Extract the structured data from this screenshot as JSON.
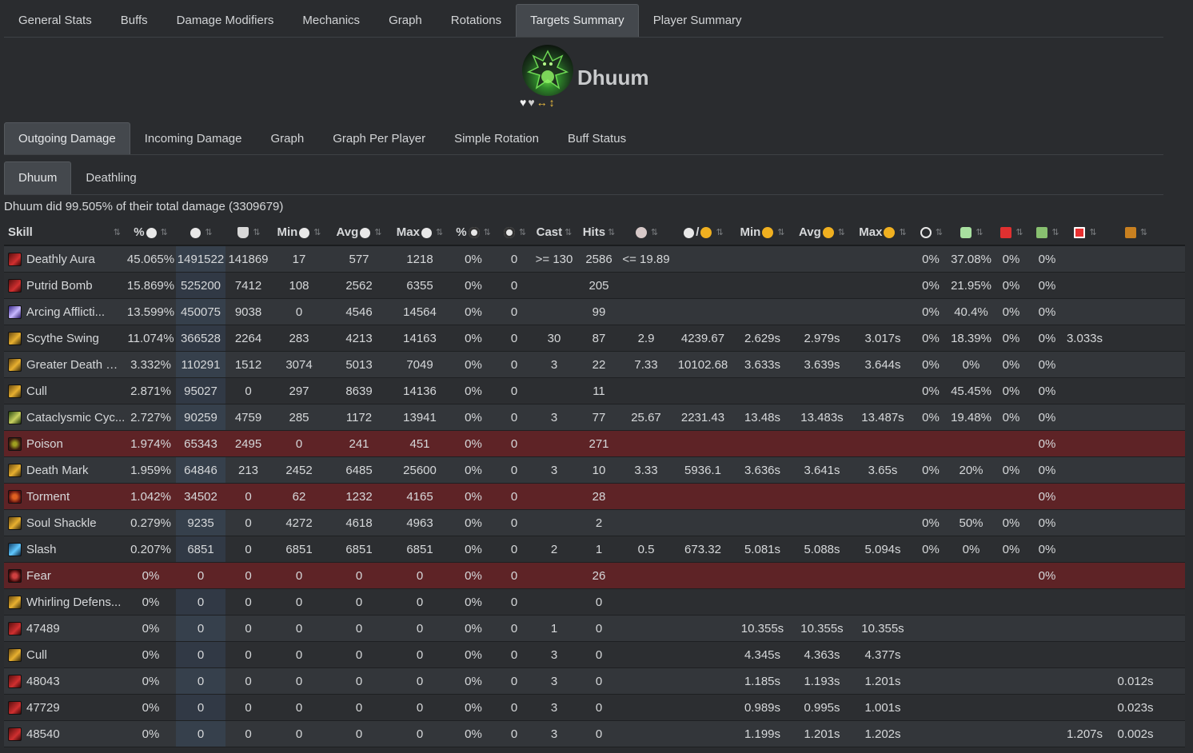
{
  "main_tabs": [
    "General Stats",
    "Buffs",
    "Damage Modifiers",
    "Mechanics",
    "Graph",
    "Rotations",
    "Targets Summary",
    "Player Summary"
  ],
  "main_active": "Targets Summary",
  "target": {
    "name": "Dhuum",
    "status_icons": [
      "♥",
      "♥",
      "↔",
      "↕"
    ]
  },
  "sub_tabs": [
    "Outgoing Damage",
    "Incoming Damage",
    "Graph",
    "Graph Per Player",
    "Simple Rotation",
    "Buff Status"
  ],
  "sub_active": "Outgoing Damage",
  "target_tabs": [
    "Dhuum",
    "Deathling"
  ],
  "target_active": "Dhuum",
  "summary": "Dhuum did 99.505% of their total damage (3309679)",
  "table": {
    "headers": [
      {
        "text": "Skill",
        "icon": null
      },
      {
        "text": "%",
        "icon": "damage-icon"
      },
      {
        "text": "",
        "icon": "damage-icon"
      },
      {
        "text": "",
        "icon": "barrier-icon"
      },
      {
        "text": "Min",
        "icon": "damage-icon"
      },
      {
        "text": "Avg",
        "icon": "damage-icon"
      },
      {
        "text": "Max",
        "icon": "damage-icon"
      },
      {
        "text": "%",
        "icon": "critical-icon"
      },
      {
        "text": "",
        "icon": "critical-icon"
      },
      {
        "text": "Cast",
        "icon": null
      },
      {
        "text": "Hits",
        "icon": null
      },
      {
        "text": "",
        "icon": "hits-per-cast-icon"
      },
      {
        "text": "/",
        "icon": "damage-per-time-icon"
      },
      {
        "text": "Min",
        "icon": "time-icon"
      },
      {
        "text": "Avg",
        "icon": "time-icon"
      },
      {
        "text": "Max",
        "icon": "time-icon"
      },
      {
        "text": "",
        "icon": "interrupt-icon"
      },
      {
        "text": "",
        "icon": "evade-icon"
      },
      {
        "text": "",
        "icon": "block-icon"
      },
      {
        "text": "",
        "icon": "invulnerable-icon"
      },
      {
        "text": "",
        "icon": "missed-icon"
      },
      {
        "text": "",
        "icon": "wasted-time-icon"
      }
    ],
    "rows": [
      {
        "skill": "Deathly Aura",
        "icon": "red",
        "highlight": false,
        "cells": [
          "45.065%",
          "1491522",
          "141869",
          "17",
          "577",
          "1218",
          "0%",
          "0",
          ">= 130",
          "2586",
          "<= 19.89",
          "",
          "",
          "",
          "",
          "0%",
          "37.08%",
          "0%",
          "0%",
          "",
          ""
        ]
      },
      {
        "skill": "Putrid Bomb",
        "icon": "red",
        "highlight": false,
        "cells": [
          "15.869%",
          "525200",
          "7412",
          "108",
          "2562",
          "6355",
          "0%",
          "0",
          "",
          "205",
          "",
          "",
          "",
          "",
          "",
          "0%",
          "21.95%",
          "0%",
          "0%",
          "",
          ""
        ]
      },
      {
        "skill": "Arcing Afflicti...",
        "icon": "purple",
        "highlight": false,
        "cells": [
          "13.599%",
          "450075",
          "9038",
          "0",
          "4546",
          "14564",
          "0%",
          "0",
          "",
          "99",
          "",
          "",
          "",
          "",
          "",
          "0%",
          "40.4%",
          "0%",
          "0%",
          "",
          ""
        ]
      },
      {
        "skill": "Scythe Swing",
        "icon": "gold",
        "highlight": false,
        "cells": [
          "11.074%",
          "366528",
          "2264",
          "283",
          "4213",
          "14163",
          "0%",
          "0",
          "30",
          "87",
          "2.9",
          "4239.67",
          "2.629s",
          "2.979s",
          "3.017s",
          "0%",
          "18.39%",
          "0%",
          "0%",
          "3.033s",
          ""
        ]
      },
      {
        "skill": "Greater Death M...",
        "icon": "gold",
        "highlight": false,
        "cells": [
          "3.332%",
          "110291",
          "1512",
          "3074",
          "5013",
          "7049",
          "0%",
          "0",
          "3",
          "22",
          "7.33",
          "10102.68",
          "3.633s",
          "3.639s",
          "3.644s",
          "0%",
          "0%",
          "0%",
          "0%",
          "",
          ""
        ]
      },
      {
        "skill": "Cull",
        "icon": "gold",
        "highlight": false,
        "cells": [
          "2.871%",
          "95027",
          "0",
          "297",
          "8639",
          "14136",
          "0%",
          "0",
          "",
          "11",
          "",
          "",
          "",
          "",
          "",
          "0%",
          "45.45%",
          "0%",
          "0%",
          "",
          ""
        ]
      },
      {
        "skill": "Cataclysmic Cyc...",
        "icon": "green",
        "highlight": false,
        "cells": [
          "2.727%",
          "90259",
          "4759",
          "285",
          "1172",
          "13941",
          "0%",
          "0",
          "3",
          "77",
          "25.67",
          "2231.43",
          "13.48s",
          "13.483s",
          "13.487s",
          "0%",
          "19.48%",
          "0%",
          "0%",
          "",
          ""
        ]
      },
      {
        "skill": "Poison",
        "icon": "poison",
        "highlight": true,
        "cells": [
          "1.974%",
          "65343",
          "2495",
          "0",
          "241",
          "451",
          "0%",
          "0",
          "",
          "271",
          "",
          "",
          "",
          "",
          "",
          "",
          "",
          "",
          "0%",
          "",
          ""
        ]
      },
      {
        "skill": "Death Mark",
        "icon": "gold",
        "highlight": false,
        "cells": [
          "1.959%",
          "64846",
          "213",
          "2452",
          "6485",
          "25600",
          "0%",
          "0",
          "3",
          "10",
          "3.33",
          "5936.1",
          "3.636s",
          "3.641s",
          "3.65s",
          "0%",
          "20%",
          "0%",
          "0%",
          "",
          ""
        ]
      },
      {
        "skill": "Torment",
        "icon": "torment",
        "highlight": true,
        "cells": [
          "1.042%",
          "34502",
          "0",
          "62",
          "1232",
          "4165",
          "0%",
          "0",
          "",
          "28",
          "",
          "",
          "",
          "",
          "",
          "",
          "",
          "",
          "0%",
          "",
          ""
        ]
      },
      {
        "skill": "Soul Shackle",
        "icon": "gold",
        "highlight": false,
        "cells": [
          "0.279%",
          "9235",
          "0",
          "4272",
          "4618",
          "4963",
          "0%",
          "0",
          "",
          "2",
          "",
          "",
          "",
          "",
          "",
          "0%",
          "50%",
          "0%",
          "0%",
          "",
          ""
        ]
      },
      {
        "skill": "Slash",
        "icon": "blue",
        "highlight": false,
        "cells": [
          "0.207%",
          "6851",
          "0",
          "6851",
          "6851",
          "6851",
          "0%",
          "0",
          "2",
          "1",
          "0.5",
          "673.32",
          "5.081s",
          "5.088s",
          "5.094s",
          "0%",
          "0%",
          "0%",
          "0%",
          "",
          ""
        ]
      },
      {
        "skill": "Fear",
        "icon": "fear",
        "highlight": true,
        "cells": [
          "0%",
          "0",
          "0",
          "0",
          "0",
          "0",
          "0%",
          "0",
          "",
          "26",
          "",
          "",
          "",
          "",
          "",
          "",
          "",
          "",
          "0%",
          "",
          ""
        ]
      },
      {
        "skill": "Whirling Defens...",
        "icon": "gold",
        "highlight": false,
        "cells": [
          "0%",
          "0",
          "0",
          "0",
          "0",
          "0",
          "0%",
          "0",
          "",
          "0",
          "",
          "",
          "",
          "",
          "",
          "",
          "",
          "",
          "",
          "",
          ""
        ]
      },
      {
        "skill": "47489",
        "icon": "red",
        "highlight": false,
        "cells": [
          "0%",
          "0",
          "0",
          "0",
          "0",
          "0",
          "0%",
          "0",
          "1",
          "0",
          "",
          "",
          "10.355s",
          "10.355s",
          "10.355s",
          "",
          "",
          "",
          "",
          "",
          ""
        ]
      },
      {
        "skill": "Cull",
        "icon": "gold",
        "highlight": false,
        "cells": [
          "0%",
          "0",
          "0",
          "0",
          "0",
          "0",
          "0%",
          "0",
          "3",
          "0",
          "",
          "",
          "4.345s",
          "4.363s",
          "4.377s",
          "",
          "",
          "",
          "",
          "",
          ""
        ]
      },
      {
        "skill": "48043",
        "icon": "red",
        "highlight": false,
        "cells": [
          "0%",
          "0",
          "0",
          "0",
          "0",
          "0",
          "0%",
          "0",
          "3",
          "0",
          "",
          "",
          "1.185s",
          "1.193s",
          "1.201s",
          "",
          "",
          "",
          "",
          "",
          "0.012s"
        ]
      },
      {
        "skill": "47729",
        "icon": "red",
        "highlight": false,
        "cells": [
          "0%",
          "0",
          "0",
          "0",
          "0",
          "0",
          "0%",
          "0",
          "3",
          "0",
          "",
          "",
          "0.989s",
          "0.995s",
          "1.001s",
          "",
          "",
          "",
          "",
          "",
          "0.023s"
        ]
      },
      {
        "skill": "48540",
        "icon": "red",
        "highlight": false,
        "cells": [
          "0%",
          "0",
          "0",
          "0",
          "0",
          "0",
          "0%",
          "0",
          "3",
          "0",
          "",
          "",
          "1.199s",
          "1.201s",
          "1.202s",
          "",
          "",
          "",
          "",
          "1.207s",
          "0.002s"
        ]
      }
    ]
  },
  "colors": {
    "background": "#2a2c2f",
    "highlight_row": "#5e2326",
    "active_tab": "#44484d"
  }
}
